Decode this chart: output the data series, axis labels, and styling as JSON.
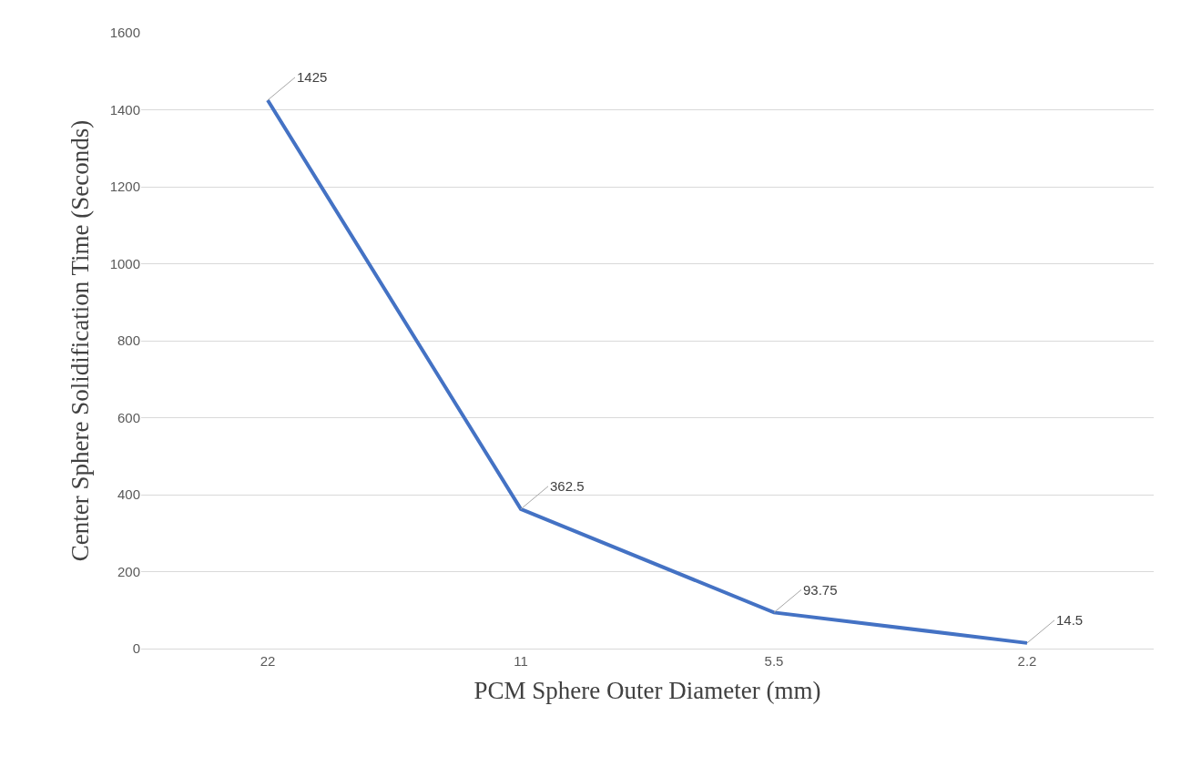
{
  "chart_data": {
    "type": "line",
    "xlabel": "PCM Sphere Outer Diameter (mm)",
    "ylabel": "Center Sphere Solidification Time (Seconds)",
    "categories": [
      "22",
      "11",
      "5.5",
      "2.2"
    ],
    "series": [
      {
        "color": "#4472c4",
        "values": [
          1425,
          362.5,
          93.75,
          14.5
        ]
      }
    ],
    "ylim": [
      0,
      1600
    ],
    "yticks": [
      0,
      200,
      400,
      600,
      800,
      1000,
      1200,
      1400,
      1600
    ],
    "grid": "y",
    "marker": "none",
    "line_style": "solid",
    "data_labels": true
  }
}
